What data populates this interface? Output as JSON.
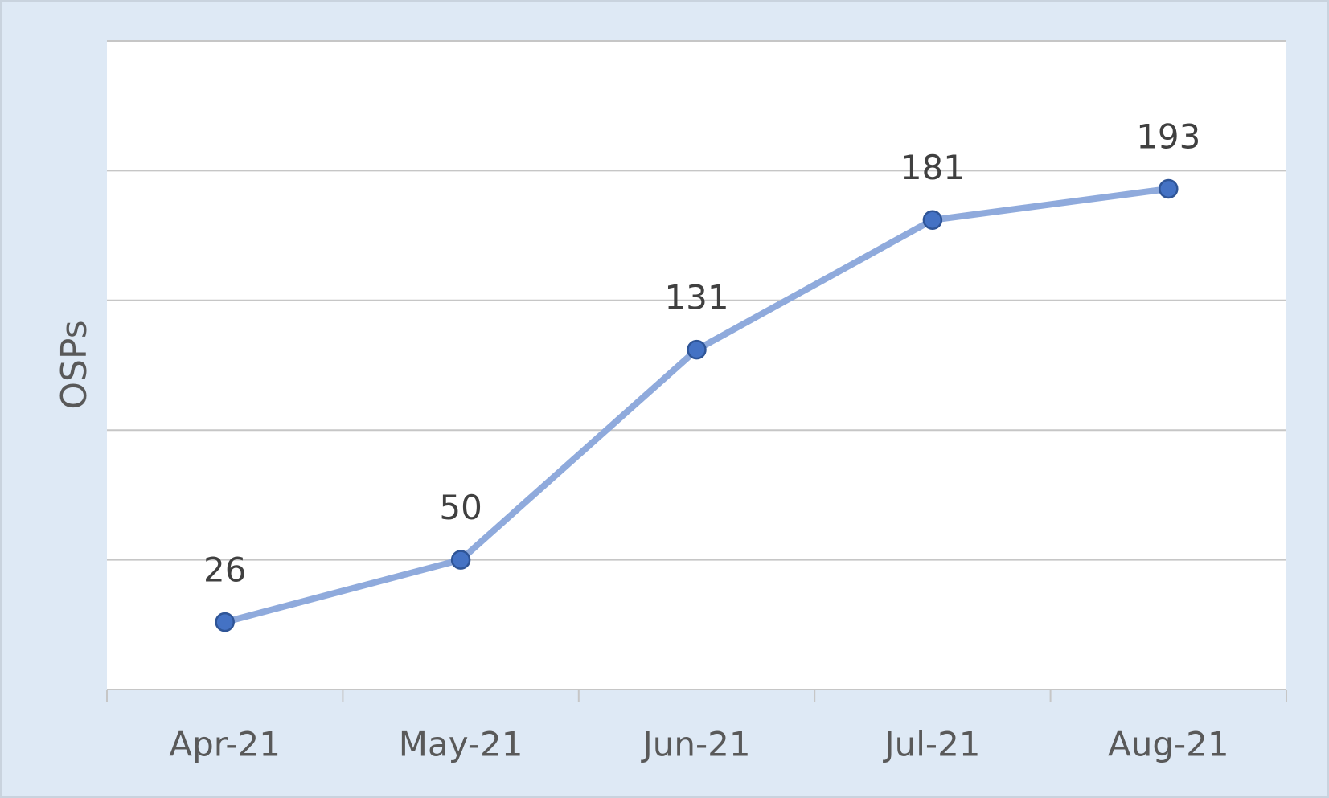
{
  "chart_data": {
    "type": "line",
    "y_label": "OSPs",
    "categories": [
      "Apr-21",
      "May-21",
      "Jun-21",
      "Jul-21",
      "Aug-21"
    ],
    "values": [
      26,
      50,
      131,
      181,
      193
    ],
    "line_color": "#8faadc",
    "marker_color": "#4472c4",
    "ylim": [
      0,
      250
    ],
    "yticks": [
      0,
      50,
      100,
      150,
      200,
      250
    ],
    "grid": true
  }
}
